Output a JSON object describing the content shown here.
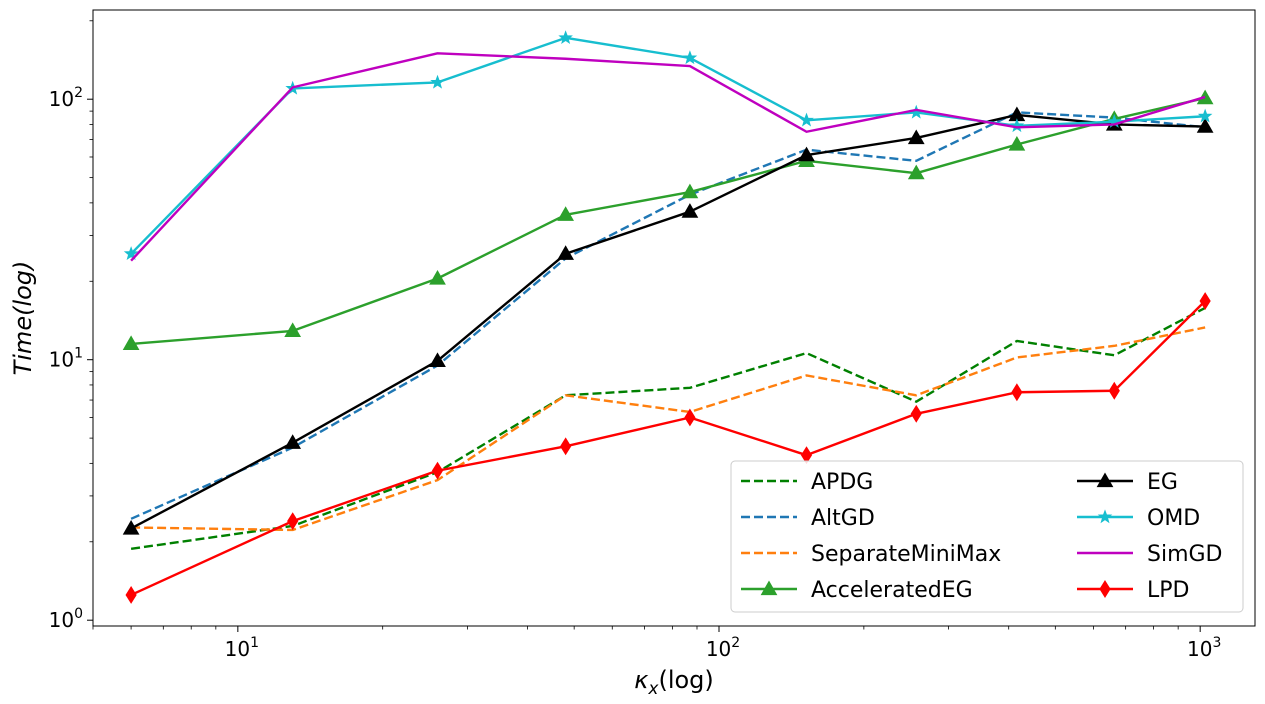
{
  "chart_data": {
    "type": "line",
    "xscale": "log",
    "yscale": "log",
    "xlabel": "κx(log)",
    "ylabel": "Time(log)",
    "xlim": [
      5,
      1300
    ],
    "ylim": [
      0.95,
      220
    ],
    "grid": false,
    "legend_position": "lower-right",
    "legend_columns": 2,
    "x_ticks": [
      {
        "value": 10,
        "base": "10",
        "exp": "1"
      },
      {
        "value": 100,
        "base": "10",
        "exp": "2"
      },
      {
        "value": 1000,
        "base": "10",
        "exp": "3"
      }
    ],
    "y_ticks": [
      {
        "value": 1,
        "base": "10",
        "exp": "0"
      },
      {
        "value": 10,
        "base": "10",
        "exp": "1"
      },
      {
        "value": 100,
        "base": "10",
        "exp": "2"
      }
    ],
    "x": [
      6,
      13,
      26,
      48,
      87,
      152,
      257,
      416,
      663,
      1024
    ],
    "series": [
      {
        "name": "APDG",
        "color": "#008000",
        "dash": "dashed",
        "marker": "none",
        "values": [
          1.88,
          2.3,
          3.7,
          7.3,
          7.8,
          10.6,
          6.9,
          11.8,
          10.4,
          15.8
        ]
      },
      {
        "name": "AltGD",
        "color": "#1f77b4",
        "dash": "dashed",
        "marker": "none",
        "values": [
          2.45,
          4.6,
          9.5,
          24.5,
          43,
          64,
          58,
          89,
          85,
          78
        ]
      },
      {
        "name": "SeparateMiniMax",
        "color": "#ff7f0e",
        "dash": "dashed",
        "marker": "none",
        "values": [
          2.27,
          2.22,
          3.45,
          7.3,
          6.3,
          8.7,
          7.3,
          10.2,
          11.3,
          13.3
        ]
      },
      {
        "name": "AcceleratedEG",
        "color": "#2ca02c",
        "dash": "solid",
        "marker": "triangle",
        "values": [
          11.5,
          12.9,
          20.5,
          36,
          44,
          58,
          52,
          67,
          84,
          101
        ]
      },
      {
        "name": "EG",
        "color": "#000000",
        "dash": "solid",
        "marker": "triangle",
        "values": [
          2.25,
          4.8,
          9.9,
          25.5,
          37,
          61,
          71,
          87,
          80,
          78.5
        ]
      },
      {
        "name": "OMD",
        "color": "#17becf",
        "dash": "solid",
        "marker": "star",
        "values": [
          25.5,
          110,
          116,
          172,
          144,
          83,
          89,
          79,
          82,
          86
        ]
      },
      {
        "name": "SimGD",
        "color": "#bf00bf",
        "dash": "solid",
        "marker": "none",
        "values": [
          24,
          111,
          150,
          143,
          134,
          75,
          91,
          78,
          80,
          102
        ]
      },
      {
        "name": "LPD",
        "color": "#ff0000",
        "dash": "solid",
        "marker": "diamond",
        "values": [
          1.25,
          2.4,
          3.75,
          4.65,
          6.0,
          4.3,
          6.2,
          7.5,
          7.6,
          16.8
        ]
      }
    ]
  }
}
